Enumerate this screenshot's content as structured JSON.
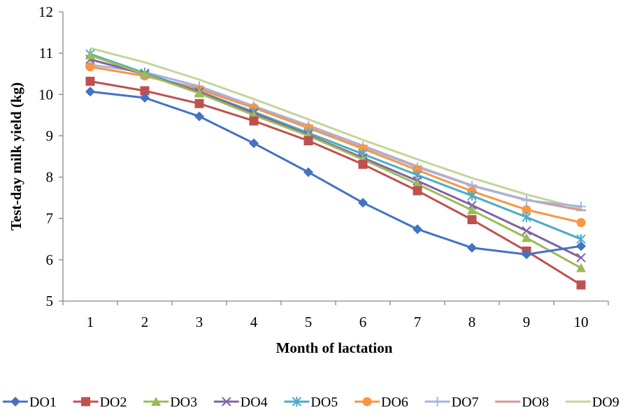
{
  "chart_data": {
    "type": "line",
    "title": "",
    "xlabel": "Month of lactation",
    "ylabel": "Test-day milk  yield (kg)",
    "x": [
      1,
      2,
      3,
      4,
      5,
      6,
      7,
      8,
      9,
      10
    ],
    "xlim": [
      0.5,
      10.5
    ],
    "ylim": [
      5,
      12
    ],
    "yticks": [
      5,
      6,
      7,
      8,
      9,
      10,
      11,
      12
    ],
    "grid": false,
    "legend_position": "bottom",
    "series": [
      {
        "name": "DO1",
        "color": "#4472c4",
        "marker": "diamond",
        "values": [
          10.07,
          9.92,
          9.47,
          8.82,
          8.12,
          7.38,
          6.74,
          6.29,
          6.13,
          6.33
        ]
      },
      {
        "name": "DO2",
        "color": "#c0504d",
        "marker": "square",
        "values": [
          10.32,
          10.09,
          9.78,
          9.36,
          8.88,
          8.31,
          7.67,
          6.97,
          6.21,
          5.39
        ]
      },
      {
        "name": "DO3",
        "color": "#9bbb59",
        "marker": "triangle",
        "values": [
          10.95,
          10.49,
          10.03,
          9.5,
          9.0,
          8.43,
          7.83,
          7.2,
          6.53,
          5.8
        ]
      },
      {
        "name": "DO4",
        "color": "#8064a2",
        "marker": "x",
        "values": [
          10.85,
          10.49,
          10.06,
          9.55,
          9.02,
          8.47,
          7.91,
          7.32,
          6.7,
          6.05
        ]
      },
      {
        "name": "DO5",
        "color": "#4bacc6",
        "marker": "star",
        "values": [
          10.98,
          10.52,
          10.07,
          9.58,
          9.07,
          8.56,
          8.05,
          7.55,
          7.03,
          6.5
        ]
      },
      {
        "name": "DO6",
        "color": "#f79646",
        "marker": "circle",
        "values": [
          10.67,
          10.45,
          10.12,
          9.68,
          9.19,
          8.69,
          8.17,
          7.66,
          7.21,
          6.9
        ]
      },
      {
        "name": "DO7",
        "color": "#a5b5dc",
        "marker": "plus",
        "values": [
          10.72,
          10.54,
          10.2,
          9.72,
          9.24,
          8.74,
          8.24,
          7.79,
          7.44,
          7.29
        ]
      },
      {
        "name": "DO8",
        "color": "#d99694",
        "marker": "dash",
        "values": [
          10.67,
          10.45,
          10.15,
          9.72,
          9.25,
          8.76,
          8.26,
          7.8,
          7.45,
          7.2
        ]
      },
      {
        "name": "DO9",
        "color": "#c3d69b",
        "marker": "none",
        "values": [
          11.12,
          10.78,
          10.36,
          9.89,
          9.4,
          8.9,
          8.43,
          7.98,
          7.58,
          7.24
        ]
      }
    ]
  }
}
